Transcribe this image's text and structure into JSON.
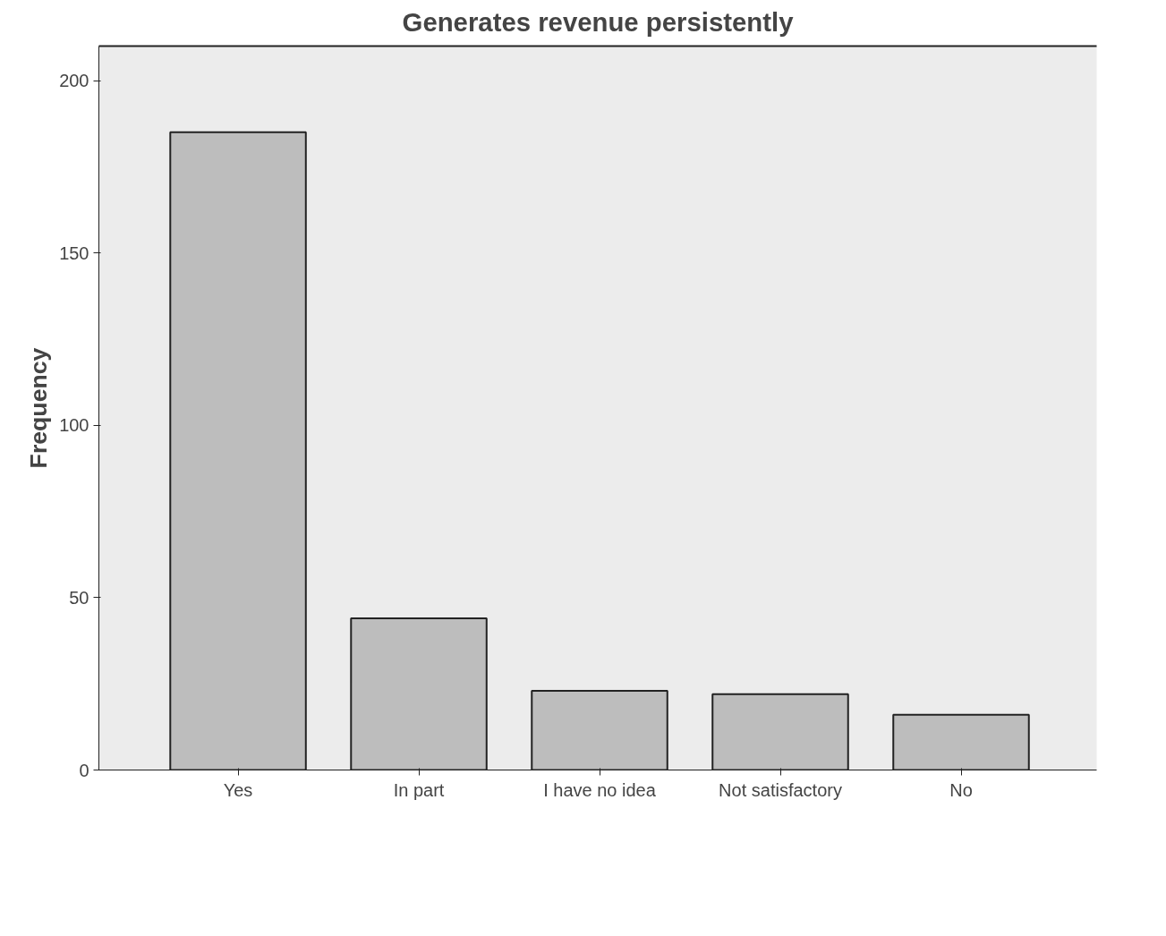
{
  "chart_data": {
    "type": "bar",
    "title": "Generates revenue persistently",
    "ylabel": "Frequency",
    "categories": [
      "Yes",
      "In part",
      "I have no idea",
      "Not satisfactory",
      "No"
    ],
    "values": [
      185,
      44,
      23,
      22,
      16
    ],
    "color": "#bdbdbd",
    "ylim": [
      0,
      210
    ],
    "yticks": [
      0,
      50,
      100,
      150,
      200
    ],
    "grid": false
  }
}
